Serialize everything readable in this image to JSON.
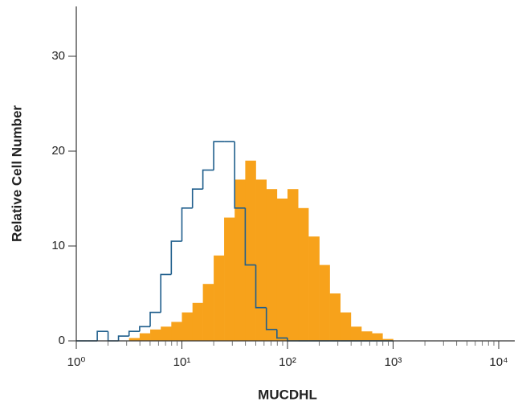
{
  "chart_data": {
    "type": "histogram",
    "x_label": "MUCDHL",
    "y_label": "Relative Cell Number",
    "x_log": true,
    "x_minor_ticks": true,
    "xlim": [
      1,
      10000
    ],
    "xticks": [
      {
        "value": 1,
        "label": "10⁰"
      },
      {
        "value": 10,
        "label": "10¹"
      },
      {
        "value": 100,
        "label": "10²"
      },
      {
        "value": 1000,
        "label": "10³"
      },
      {
        "value": 10000,
        "label": "10⁴"
      }
    ],
    "ylim": [
      0,
      35
    ],
    "yticks": [
      0,
      10,
      20,
      30
    ],
    "bins": [
      1,
      1.26,
      1.58,
      2,
      2.51,
      3.16,
      3.98,
      5.01,
      6.31,
      7.94,
      10,
      12.6,
      15.8,
      20,
      25.1,
      31.6,
      39.8,
      50.1,
      63.1,
      79.4,
      100,
      126,
      158,
      200,
      251,
      316,
      398,
      501,
      631,
      794,
      1000
    ],
    "series": [
      {
        "color": "#f7a21b",
        "style": "filled",
        "values": [
          0,
          0,
          0,
          0,
          0,
          0.3,
          0.8,
          1.2,
          1.5,
          2,
          3,
          4,
          6,
          9,
          13,
          17,
          19,
          17,
          16,
          15,
          16,
          14,
          11,
          8,
          5,
          3,
          1.5,
          1,
          0.8,
          0.2
        ]
      },
      {
        "color": "#1f5e8c",
        "style": "outline",
        "values": [
          0,
          0,
          1,
          0,
          0.5,
          1,
          1.5,
          3,
          7,
          10.5,
          14,
          16,
          18,
          21,
          21,
          14,
          8,
          3.5,
          1.2,
          0.3,
          0,
          0,
          0,
          0,
          0,
          0,
          0,
          0,
          0,
          0
        ]
      }
    ]
  }
}
